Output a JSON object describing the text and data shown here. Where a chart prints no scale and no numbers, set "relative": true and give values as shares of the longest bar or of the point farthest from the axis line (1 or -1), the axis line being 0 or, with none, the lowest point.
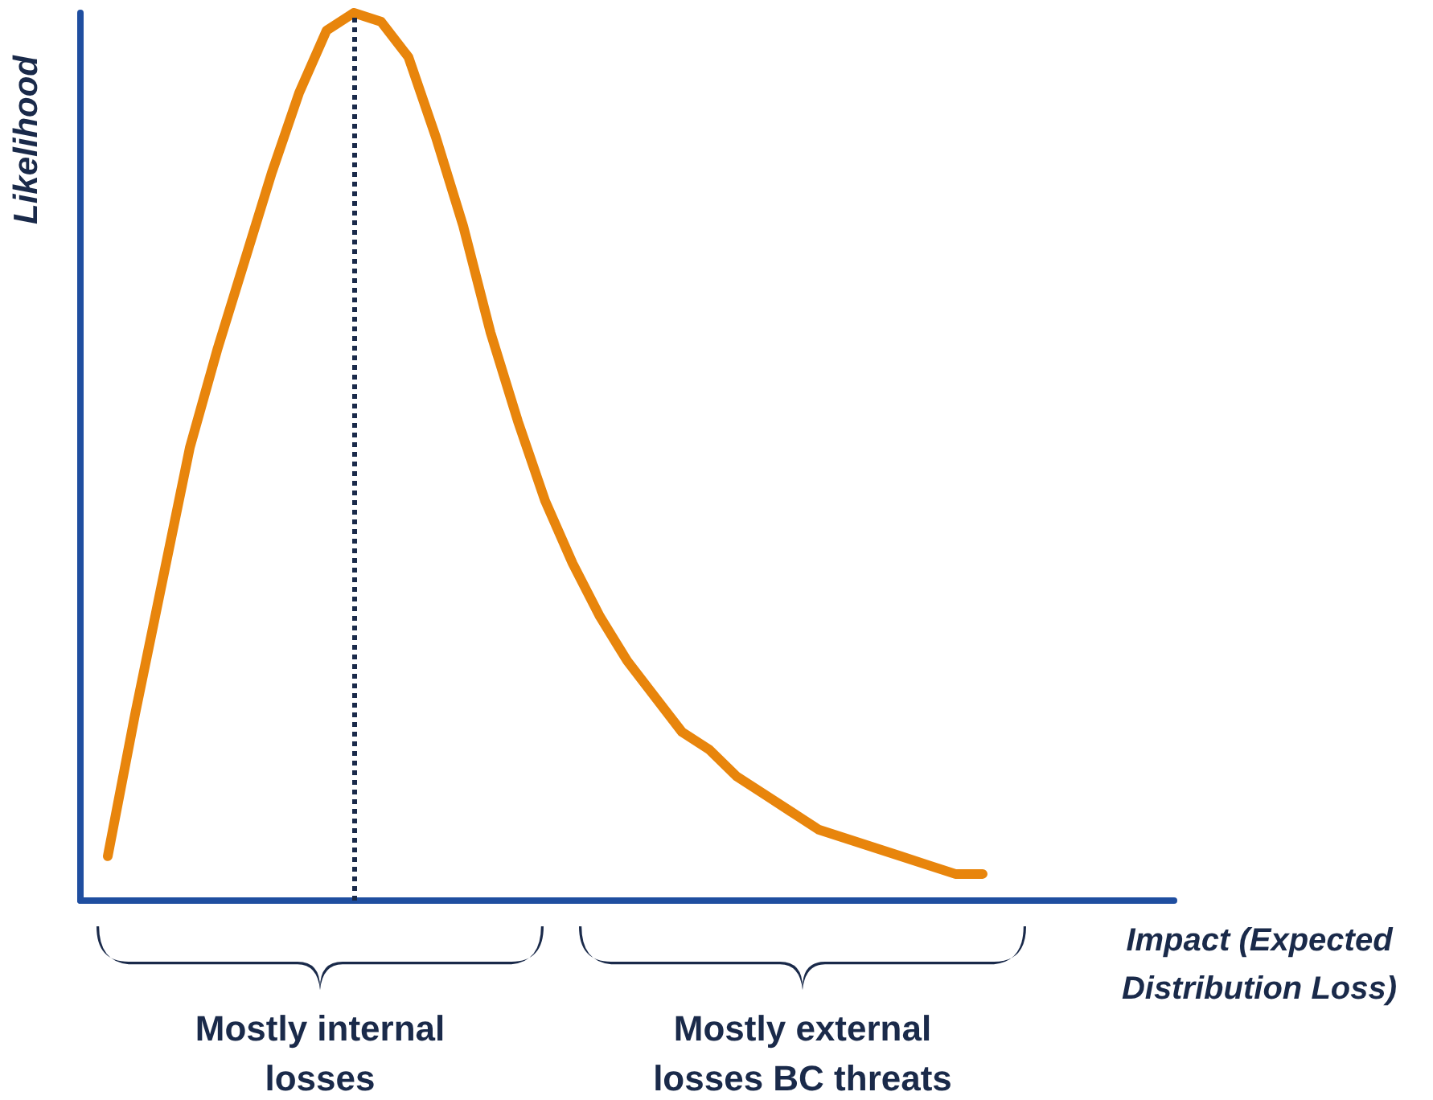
{
  "chart_data": {
    "type": "line",
    "relative": true,
    "xlabel": "Impact (Expected Distribution Loss)",
    "ylabel": "Likelihood",
    "categories": [
      null,
      null,
      null,
      null,
      null,
      null,
      null,
      null,
      null,
      null,
      null,
      null,
      null,
      null,
      null,
      null,
      null,
      null,
      null,
      null,
      null,
      null,
      null,
      null,
      null,
      null,
      null,
      null,
      null,
      null,
      null,
      null,
      null,
      null,
      null,
      null,
      null,
      null,
      null,
      null,
      null
    ],
    "grid": false,
    "marker": "none",
    "line_style": "solid",
    "series": [
      {
        "color": "#e8850c",
        "values": [
          null,
          0.05,
          0.21,
          0.36,
          0.51,
          0.62,
          0.72,
          0.82,
          0.91,
          0.98,
          1.0,
          0.99,
          0.95,
          0.86,
          0.76,
          0.64,
          0.54,
          0.45,
          0.38,
          0.32,
          0.27,
          0.23,
          0.19,
          0.17,
          0.14,
          0.12,
          0.1,
          0.08,
          0.07,
          0.06,
          0.05,
          0.04,
          0.03,
          0.03,
          null,
          null,
          null,
          null,
          null,
          null,
          null
        ]
      }
    ],
    "ref_lines": [
      {
        "axis": "x",
        "color": "#1a2a4a",
        "line_style": "dotted"
      }
    ],
    "annotations": [
      "Mostly internal losses",
      "Mostly external losses BC threats"
    ]
  }
}
